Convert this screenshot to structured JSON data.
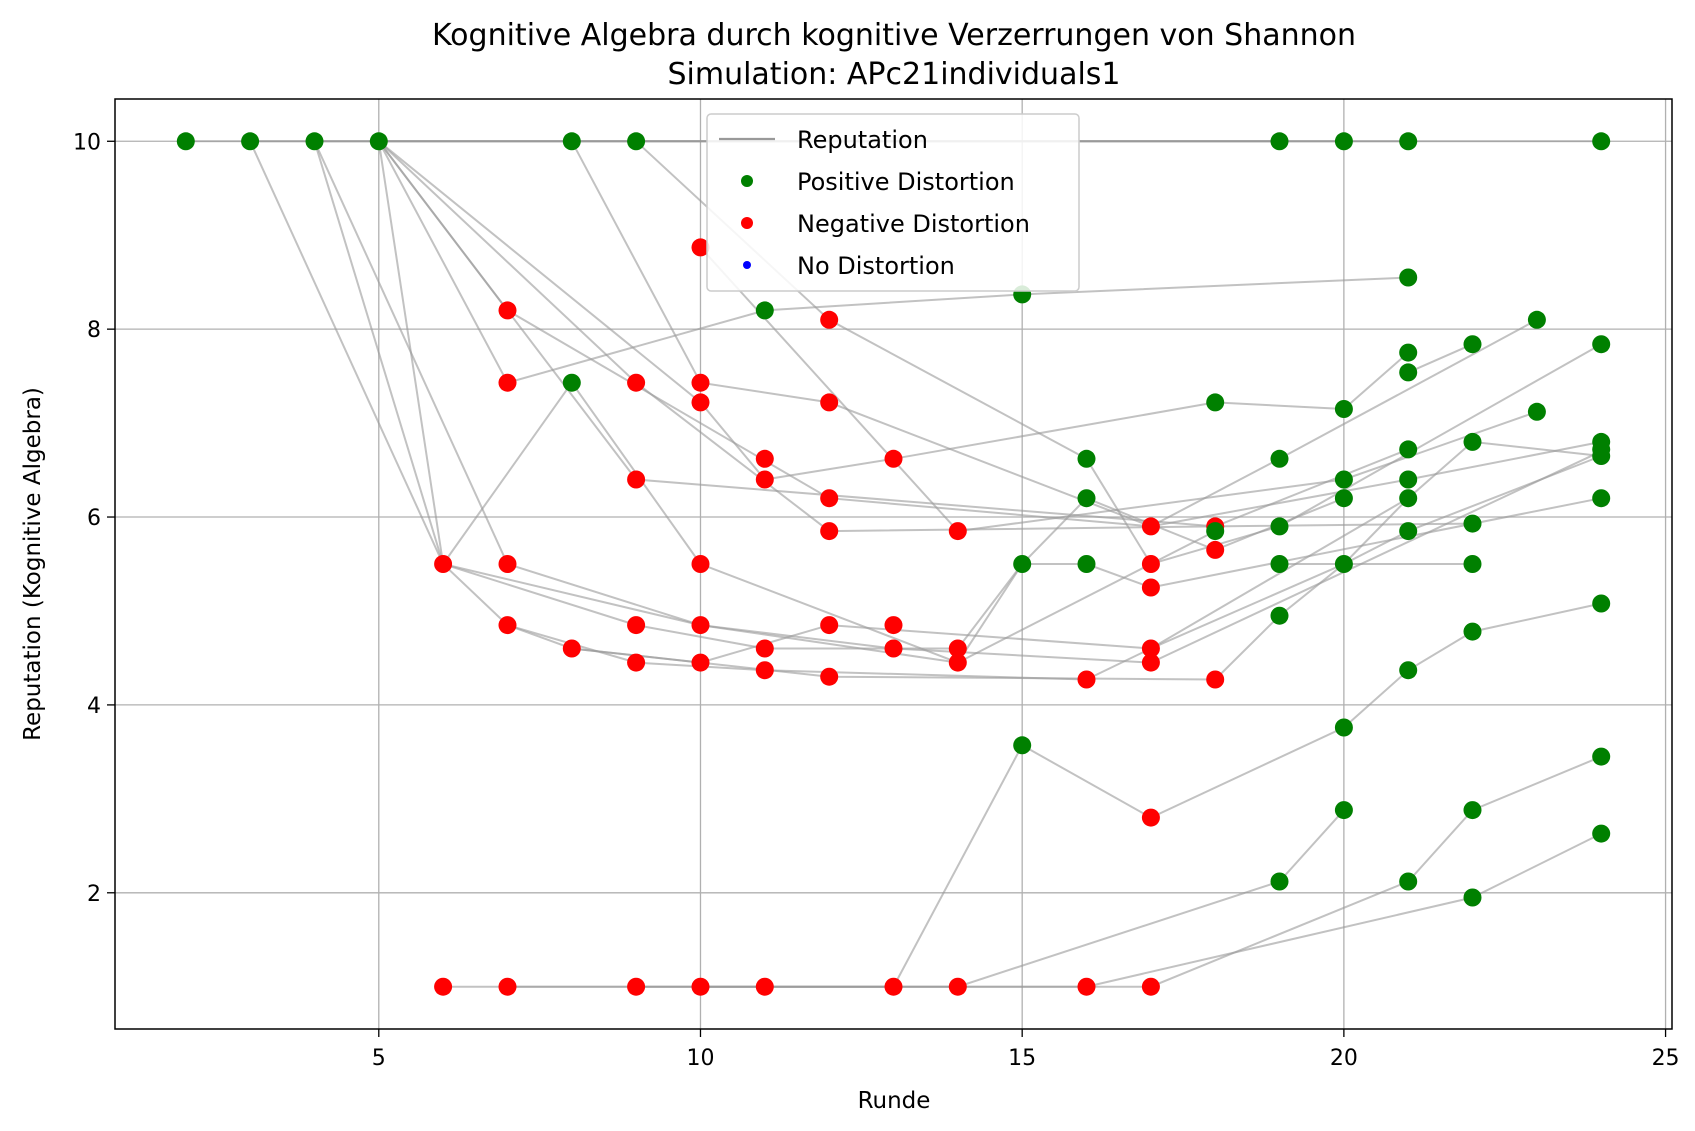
{
  "chart_data": {
    "type": "scatter",
    "title": "Kognitive Algebra durch kognitive Verzerrungen von Shannon",
    "subtitle": "Simulation: APc21individuals1",
    "xlabel": "Runde",
    "ylabel": "Reputation (Kognitive Algebra)",
    "xlim": [
      0.9,
      25.1
    ],
    "ylim": [
      0.55,
      10.45
    ],
    "xticks": [
      5,
      10,
      15,
      20,
      25
    ],
    "yticks": [
      2,
      4,
      6,
      8,
      10
    ],
    "grid": true,
    "legend_position": "top-center",
    "legend": [
      {
        "label": "Reputation",
        "kind": "line",
        "color": "#999999"
      },
      {
        "label": "Positive Distortion",
        "kind": "marker",
        "color": "#008000"
      },
      {
        "label": "Negative Distortion",
        "kind": "marker",
        "color": "#ff0000"
      },
      {
        "label": "No Distortion",
        "kind": "marker",
        "color": "#0000ff"
      }
    ],
    "colors": {
      "positive": "#008000",
      "negative": "#ff0000",
      "none": "#0000ff",
      "line": "#999999"
    },
    "series": [
      {
        "points": [
          [
            2,
            10
          ],
          [
            24,
            10
          ]
        ]
      },
      {
        "points": [
          [
            3,
            10
          ],
          [
            20,
            10
          ]
        ]
      },
      {
        "points": [
          [
            4,
            10
          ],
          [
            19,
            10
          ]
        ]
      },
      {
        "points": [
          [
            5,
            10
          ],
          [
            21,
            10
          ]
        ]
      },
      {
        "points": [
          [
            3,
            10
          ],
          [
            6,
            5.5
          ],
          [
            10,
            4.85
          ],
          [
            14,
            4.45
          ],
          [
            18,
            5.85
          ]
        ]
      },
      {
        "points": [
          [
            4,
            10
          ],
          [
            6,
            5.5
          ],
          [
            7,
            4.85
          ],
          [
            8,
            4.6
          ],
          [
            12,
            4.3
          ],
          [
            18,
            4.27
          ],
          [
            19,
            4.95
          ],
          [
            20,
            5.5
          ],
          [
            21,
            5.85
          ],
          [
            24,
            6.65
          ]
        ]
      },
      {
        "points": [
          [
            4,
            10
          ],
          [
            7,
            5.5
          ],
          [
            10,
            4.85
          ],
          [
            13,
            4.6
          ],
          [
            17,
            4.45
          ],
          [
            24,
            6.7
          ]
        ]
      },
      {
        "points": [
          [
            5,
            10
          ],
          [
            6,
            5.5
          ],
          [
            8,
            7.43
          ],
          [
            10,
            5.5
          ],
          [
            14,
            4.45
          ],
          [
            15,
            5.5
          ],
          [
            16,
            6.2
          ],
          [
            18,
            5.65
          ],
          [
            20,
            6.2
          ]
        ]
      },
      {
        "points": [
          [
            5,
            10
          ],
          [
            7,
            8.2
          ],
          [
            11,
            6.6
          ],
          [
            12,
            6.2
          ],
          [
            17,
            5.9
          ],
          [
            21,
            6.4
          ],
          [
            24,
            6.8
          ]
        ]
      },
      {
        "points": [
          [
            5,
            10
          ],
          [
            9,
            6.4
          ],
          [
            18,
            5.9
          ],
          [
            22,
            5.93
          ]
        ]
      },
      {
        "points": [
          [
            5,
            10
          ],
          [
            7,
            7.43
          ],
          [
            11,
            8.2
          ],
          [
            15,
            8.37
          ],
          [
            21,
            8.55
          ]
        ]
      },
      {
        "points": [
          [
            5,
            10
          ],
          [
            9,
            7.43
          ],
          [
            12,
            5.85
          ],
          [
            18,
            5.9
          ],
          [
            21,
            6.72
          ]
        ]
      },
      {
        "points": [
          [
            5,
            10
          ],
          [
            10,
            7.22
          ],
          [
            11,
            6.4
          ],
          [
            13,
            6.62
          ],
          [
            18,
            7.22
          ],
          [
            20,
            7.15
          ],
          [
            21,
            7.75
          ]
        ]
      },
      {
        "points": [
          [
            8,
            10
          ],
          [
            10,
            7.43
          ],
          [
            12,
            7.22
          ],
          [
            17,
            5.9
          ],
          [
            19,
            6.62
          ],
          [
            23,
            8.1
          ]
        ]
      },
      {
        "points": [
          [
            9,
            10
          ],
          [
            12,
            8.1
          ],
          [
            16,
            6.62
          ],
          [
            17,
            5.5
          ],
          [
            19,
            5.9
          ],
          [
            24,
            7.84
          ]
        ]
      },
      {
        "points": [
          [
            10,
            8.87
          ],
          [
            14,
            5.85
          ],
          [
            20,
            6.4
          ],
          [
            23,
            7.12
          ]
        ]
      },
      {
        "points": [
          [
            6,
            5.5
          ],
          [
            9,
            4.85
          ],
          [
            11,
            4.6
          ],
          [
            14,
            4.6
          ],
          [
            15,
            5.5
          ],
          [
            16,
            5.5
          ],
          [
            17,
            5.25
          ],
          [
            24,
            6.2
          ]
        ]
      },
      {
        "points": [
          [
            7,
            4.85
          ],
          [
            9,
            4.45
          ],
          [
            11,
            4.37
          ],
          [
            16,
            4.27
          ],
          [
            17,
            4.6
          ],
          [
            21,
            6.2
          ]
        ]
      },
      {
        "points": [
          [
            8,
            4.6
          ],
          [
            10,
            4.45
          ],
          [
            12,
            4.85
          ],
          [
            17,
            4.6
          ],
          [
            20,
            5.5
          ],
          [
            21,
            6.2
          ],
          [
            22,
            6.8
          ],
          [
            24,
            6.65
          ]
        ]
      },
      {
        "points": [
          [
            6,
            1
          ],
          [
            10,
            1
          ],
          [
            13,
            1
          ],
          [
            15,
            3.57
          ],
          [
            17,
            2.8
          ],
          [
            20,
            3.76
          ],
          [
            21,
            4.37
          ],
          [
            22,
            4.78
          ],
          [
            24,
            5.08
          ]
        ]
      },
      {
        "points": [
          [
            7,
            1
          ],
          [
            11,
            1
          ],
          [
            14,
            1
          ],
          [
            19,
            2.12
          ],
          [
            20,
            2.88
          ]
        ]
      },
      {
        "points": [
          [
            9,
            1
          ],
          [
            16,
            1
          ],
          [
            22,
            1.95
          ],
          [
            24,
            2.63
          ]
        ]
      },
      {
        "points": [
          [
            10,
            1
          ],
          [
            17,
            1
          ],
          [
            21,
            2.12
          ],
          [
            22,
            2.88
          ],
          [
            24,
            3.45
          ]
        ]
      },
      {
        "points": [
          [
            21,
            7.54
          ],
          [
            22,
            7.84
          ]
        ]
      },
      {
        "points": [
          [
            19,
            5.5
          ],
          [
            22,
            5.5
          ]
        ]
      }
    ],
    "markers": [
      {
        "x": 2,
        "y": 10,
        "d": "positive"
      },
      {
        "x": 3,
        "y": 10,
        "d": "positive"
      },
      {
        "x": 4,
        "y": 10,
        "d": "positive"
      },
      {
        "x": 5,
        "y": 10,
        "d": "positive"
      },
      {
        "x": 8,
        "y": 10,
        "d": "positive"
      },
      {
        "x": 9,
        "y": 10,
        "d": "positive"
      },
      {
        "x": 19,
        "y": 10,
        "d": "positive"
      },
      {
        "x": 20,
        "y": 10,
        "d": "positive"
      },
      {
        "x": 21,
        "y": 10,
        "d": "positive"
      },
      {
        "x": 24,
        "y": 10,
        "d": "positive"
      },
      {
        "x": 6,
        "y": 5.5,
        "d": "negative"
      },
      {
        "x": 7,
        "y": 8.2,
        "d": "negative"
      },
      {
        "x": 7,
        "y": 7.43,
        "d": "negative"
      },
      {
        "x": 7,
        "y": 5.5,
        "d": "negative"
      },
      {
        "x": 7,
        "y": 4.85,
        "d": "negative"
      },
      {
        "x": 8,
        "y": 7.43,
        "d": "positive"
      },
      {
        "x": 8,
        "y": 4.6,
        "d": "negative"
      },
      {
        "x": 9,
        "y": 7.43,
        "d": "negative"
      },
      {
        "x": 9,
        "y": 6.4,
        "d": "negative"
      },
      {
        "x": 9,
        "y": 4.85,
        "d": "negative"
      },
      {
        "x": 9,
        "y": 4.45,
        "d": "negative"
      },
      {
        "x": 10,
        "y": 8.87,
        "d": "negative"
      },
      {
        "x": 10,
        "y": 7.43,
        "d": "negative"
      },
      {
        "x": 10,
        "y": 7.22,
        "d": "negative"
      },
      {
        "x": 10,
        "y": 5.5,
        "d": "negative"
      },
      {
        "x": 10,
        "y": 4.85,
        "d": "negative"
      },
      {
        "x": 10,
        "y": 4.45,
        "d": "negative"
      },
      {
        "x": 11,
        "y": 8.2,
        "d": "positive"
      },
      {
        "x": 11,
        "y": 6.62,
        "d": "negative"
      },
      {
        "x": 11,
        "y": 6.4,
        "d": "negative"
      },
      {
        "x": 11,
        "y": 4.6,
        "d": "negative"
      },
      {
        "x": 11,
        "y": 4.37,
        "d": "negative"
      },
      {
        "x": 12,
        "y": 8.1,
        "d": "negative"
      },
      {
        "x": 12,
        "y": 7.22,
        "d": "negative"
      },
      {
        "x": 12,
        "y": 6.2,
        "d": "negative"
      },
      {
        "x": 12,
        "y": 5.85,
        "d": "negative"
      },
      {
        "x": 12,
        "y": 4.85,
        "d": "negative"
      },
      {
        "x": 12,
        "y": 4.3,
        "d": "negative"
      },
      {
        "x": 13,
        "y": 6.62,
        "d": "negative"
      },
      {
        "x": 13,
        "y": 4.85,
        "d": "negative"
      },
      {
        "x": 13,
        "y": 4.6,
        "d": "negative"
      },
      {
        "x": 14,
        "y": 5.85,
        "d": "negative"
      },
      {
        "x": 14,
        "y": 4.6,
        "d": "negative"
      },
      {
        "x": 14,
        "y": 4.45,
        "d": "negative"
      },
      {
        "x": 15,
        "y": 8.37,
        "d": "positive"
      },
      {
        "x": 15,
        "y": 5.5,
        "d": "positive"
      },
      {
        "x": 15,
        "y": 3.57,
        "d": "positive"
      },
      {
        "x": 16,
        "y": 6.62,
        "d": "positive"
      },
      {
        "x": 16,
        "y": 6.2,
        "d": "positive"
      },
      {
        "x": 16,
        "y": 5.5,
        "d": "positive"
      },
      {
        "x": 16,
        "y": 4.27,
        "d": "negative"
      },
      {
        "x": 17,
        "y": 5.9,
        "d": "negative"
      },
      {
        "x": 17,
        "y": 5.5,
        "d": "negative"
      },
      {
        "x": 17,
        "y": 5.25,
        "d": "negative"
      },
      {
        "x": 17,
        "y": 4.6,
        "d": "negative"
      },
      {
        "x": 17,
        "y": 4.45,
        "d": "negative"
      },
      {
        "x": 17,
        "y": 2.8,
        "d": "negative"
      },
      {
        "x": 18,
        "y": 7.22,
        "d": "positive"
      },
      {
        "x": 18,
        "y": 5.9,
        "d": "negative"
      },
      {
        "x": 18,
        "y": 5.85,
        "d": "positive"
      },
      {
        "x": 18,
        "y": 5.65,
        "d": "negative"
      },
      {
        "x": 18,
        "y": 4.27,
        "d": "negative"
      },
      {
        "x": 19,
        "y": 6.62,
        "d": "positive"
      },
      {
        "x": 19,
        "y": 5.9,
        "d": "positive"
      },
      {
        "x": 19,
        "y": 5.5,
        "d": "positive"
      },
      {
        "x": 19,
        "y": 4.95,
        "d": "positive"
      },
      {
        "x": 19,
        "y": 2.12,
        "d": "positive"
      },
      {
        "x": 20,
        "y": 7.15,
        "d": "positive"
      },
      {
        "x": 20,
        "y": 6.4,
        "d": "positive"
      },
      {
        "x": 20,
        "y": 6.2,
        "d": "positive"
      },
      {
        "x": 20,
        "y": 5.5,
        "d": "positive"
      },
      {
        "x": 20,
        "y": 3.76,
        "d": "positive"
      },
      {
        "x": 20,
        "y": 2.88,
        "d": "positive"
      },
      {
        "x": 21,
        "y": 8.55,
        "d": "positive"
      },
      {
        "x": 21,
        "y": 7.75,
        "d": "positive"
      },
      {
        "x": 21,
        "y": 7.54,
        "d": "positive"
      },
      {
        "x": 21,
        "y": 6.72,
        "d": "positive"
      },
      {
        "x": 21,
        "y": 6.4,
        "d": "positive"
      },
      {
        "x": 21,
        "y": 6.2,
        "d": "positive"
      },
      {
        "x": 21,
        "y": 5.85,
        "d": "positive"
      },
      {
        "x": 21,
        "y": 4.37,
        "d": "positive"
      },
      {
        "x": 21,
        "y": 2.12,
        "d": "positive"
      },
      {
        "x": 22,
        "y": 7.84,
        "d": "positive"
      },
      {
        "x": 22,
        "y": 6.8,
        "d": "positive"
      },
      {
        "x": 22,
        "y": 5.93,
        "d": "positive"
      },
      {
        "x": 22,
        "y": 5.5,
        "d": "positive"
      },
      {
        "x": 22,
        "y": 4.78,
        "d": "positive"
      },
      {
        "x": 22,
        "y": 2.88,
        "d": "positive"
      },
      {
        "x": 22,
        "y": 1.95,
        "d": "positive"
      },
      {
        "x": 23,
        "y": 8.1,
        "d": "positive"
      },
      {
        "x": 23,
        "y": 7.12,
        "d": "positive"
      },
      {
        "x": 24,
        "y": 7.84,
        "d": "positive"
      },
      {
        "x": 24,
        "y": 6.8,
        "d": "positive"
      },
      {
        "x": 24,
        "y": 6.72,
        "d": "positive"
      },
      {
        "x": 24,
        "y": 6.65,
        "d": "positive"
      },
      {
        "x": 24,
        "y": 6.2,
        "d": "positive"
      },
      {
        "x": 24,
        "y": 5.08,
        "d": "positive"
      },
      {
        "x": 24,
        "y": 3.45,
        "d": "positive"
      },
      {
        "x": 24,
        "y": 2.63,
        "d": "positive"
      },
      {
        "x": 6,
        "y": 1,
        "d": "negative"
      },
      {
        "x": 7,
        "y": 1,
        "d": "negative"
      },
      {
        "x": 9,
        "y": 1,
        "d": "negative"
      },
      {
        "x": 10,
        "y": 1,
        "d": "negative"
      },
      {
        "x": 11,
        "y": 1,
        "d": "negative"
      },
      {
        "x": 13,
        "y": 1,
        "d": "negative"
      },
      {
        "x": 14,
        "y": 1,
        "d": "negative"
      },
      {
        "x": 16,
        "y": 1,
        "d": "negative"
      },
      {
        "x": 17,
        "y": 1,
        "d": "negative"
      }
    ]
  }
}
